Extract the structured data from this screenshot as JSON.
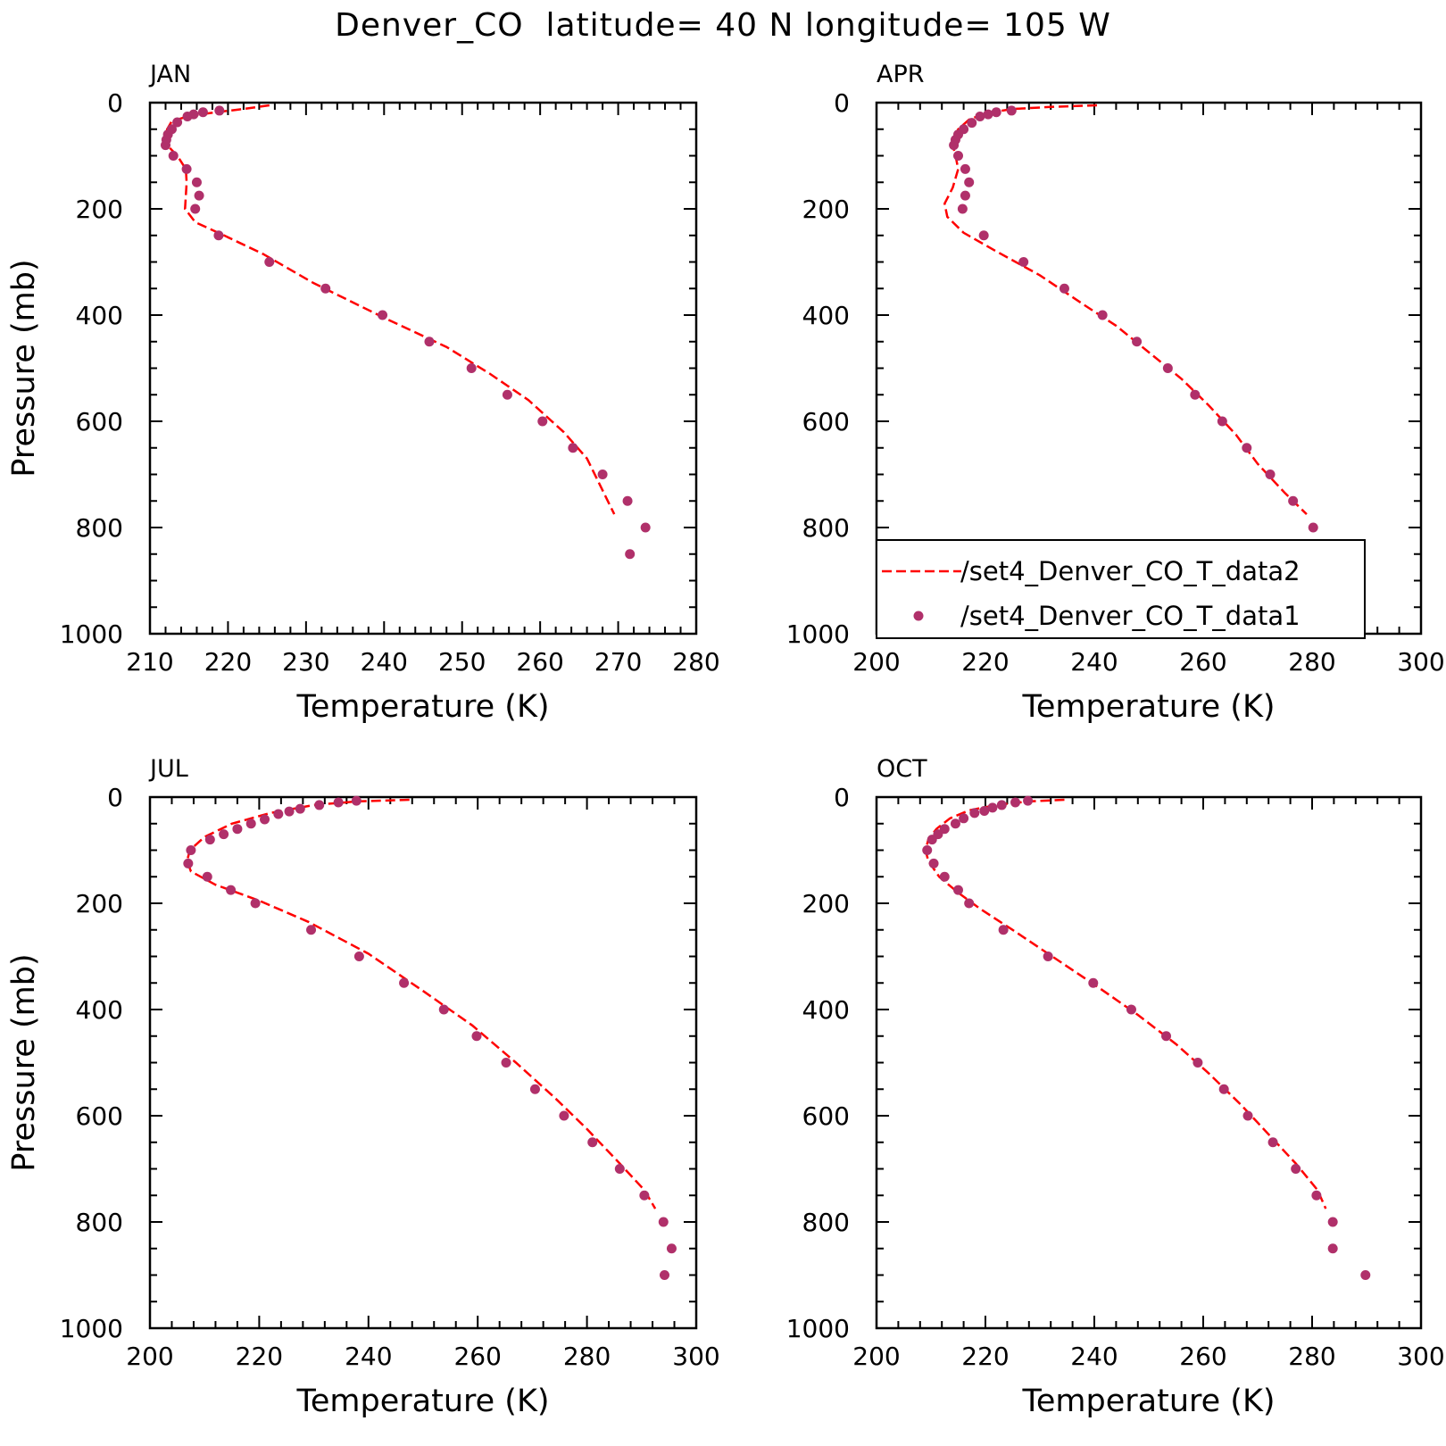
{
  "title": "Denver_CO  latitude= 40 N longitude= 105 W",
  "colors": {
    "model_line": "#ff0000",
    "obs_marker": "#b0306a",
    "axes": "#000000"
  },
  "legend": {
    "placement": "inside APR panel, lower-left",
    "entries": [
      {
        "label": "/set4_Denver_CO_T_data2",
        "style": "dashed-line",
        "series": "model"
      },
      {
        "label": "/set4_Denver_CO_T_data1",
        "style": "marker",
        "series": "obs"
      }
    ]
  },
  "chart_data": [
    {
      "type": "line",
      "panel_label": "JAN",
      "xlabel": "Temperature (K)",
      "ylabel": "Pressure (mb)",
      "xlim": [
        210,
        280
      ],
      "xticks": [
        210,
        220,
        230,
        240,
        250,
        260,
        270,
        280
      ],
      "ylim": [
        0,
        1000
      ],
      "yticks": [
        0,
        200,
        400,
        600,
        800,
        1000
      ],
      "y_inverted": true,
      "grid": false,
      "series": [
        {
          "name": "/set4_Denver_CO_T_data2",
          "style": "dashed-line",
          "points": [
            [
              225.3,
              5
            ],
            [
              222,
              12
            ],
            [
              218.5,
              18
            ],
            [
              215,
              25
            ],
            [
              212.8,
              35
            ],
            [
              212.2,
              50
            ],
            [
              212,
              65
            ],
            [
              212.2,
              80
            ],
            [
              213.5,
              100
            ],
            [
              214.6,
              125
            ],
            [
              214.7,
              150
            ],
            [
              214.5,
              200
            ],
            [
              215.8,
              225
            ],
            [
              219.5,
              250
            ],
            [
              224.5,
              285
            ],
            [
              231,
              340
            ],
            [
              240,
              405
            ],
            [
              248,
              460
            ],
            [
              253.5,
              510
            ],
            [
              258.5,
              560
            ],
            [
              263,
              620
            ],
            [
              266,
              670
            ],
            [
              269.5,
              775
            ]
          ]
        },
        {
          "name": "/set4_Denver_CO_T_data1",
          "style": "marker",
          "points": [
            [
              218.9,
              15
            ],
            [
              216.8,
              18
            ],
            [
              215.6,
              22
            ],
            [
              214.8,
              26
            ],
            [
              213.5,
              37
            ],
            [
              212.8,
              50
            ],
            [
              212.3,
              60
            ],
            [
              212.1,
              70
            ],
            [
              212,
              80
            ],
            [
              213,
              100
            ],
            [
              214.7,
              125
            ],
            [
              216,
              150
            ],
            [
              216.3,
              175
            ],
            [
              215.8,
              200
            ],
            [
              218.8,
              250
            ],
            [
              225.3,
              300
            ],
            [
              232.5,
              350
            ],
            [
              239.8,
              400
            ],
            [
              245.8,
              450
            ],
            [
              251.2,
              500
            ],
            [
              255.8,
              550
            ],
            [
              260.3,
              600
            ],
            [
              264.2,
              650
            ],
            [
              268,
              700
            ],
            [
              271.2,
              750
            ],
            [
              273.5,
              800
            ],
            [
              271.5,
              850
            ]
          ]
        }
      ]
    },
    {
      "type": "line",
      "panel_label": "APR",
      "xlabel": "Temperature (K)",
      "ylabel": "",
      "xlim": [
        200,
        300
      ],
      "xticks": [
        200,
        220,
        240,
        260,
        280,
        300
      ],
      "ylim": [
        0,
        1000
      ],
      "yticks": [
        0,
        200,
        400,
        600,
        800,
        1000
      ],
      "y_inverted": true,
      "grid": false,
      "series": [
        {
          "name": "/set4_Denver_CO_T_data2",
          "style": "dashed-line",
          "points": [
            [
              240.5,
              5
            ],
            [
              232,
              8
            ],
            [
              225,
              12
            ],
            [
              220,
              20
            ],
            [
              217,
              32
            ],
            [
              215,
              50
            ],
            [
              214.3,
              65
            ],
            [
              214,
              80
            ],
            [
              214.5,
              100
            ],
            [
              215,
              125
            ],
            [
              214,
              160
            ],
            [
              212.5,
              190
            ],
            [
              213,
              215
            ],
            [
              216,
              245
            ],
            [
              222,
              280
            ],
            [
              230,
              325
            ],
            [
              238,
              380
            ],
            [
              244,
              420
            ],
            [
              250,
              470
            ],
            [
              256,
              520
            ],
            [
              261,
              570
            ],
            [
              266,
              625
            ],
            [
              270,
              680
            ],
            [
              275,
              735
            ],
            [
              279,
              775
            ]
          ]
        },
        {
          "name": "/set4_Denver_CO_T_data1",
          "style": "marker",
          "points": [
            [
              224.8,
              15
            ],
            [
              222,
              18
            ],
            [
              220.5,
              22
            ],
            [
              219,
              26
            ],
            [
              217.5,
              38
            ],
            [
              216,
              50
            ],
            [
              215,
              60
            ],
            [
              214.5,
              70
            ],
            [
              214.2,
              80
            ],
            [
              215,
              100
            ],
            [
              216.3,
              125
            ],
            [
              217,
              150
            ],
            [
              216.3,
              175
            ],
            [
              215.8,
              200
            ],
            [
              219.7,
              250
            ],
            [
              227,
              300
            ],
            [
              234.5,
              350
            ],
            [
              241.5,
              400
            ],
            [
              247.8,
              450
            ],
            [
              253.5,
              500
            ],
            [
              258.5,
              550
            ],
            [
              263.5,
              600
            ],
            [
              268,
              650
            ],
            [
              272.3,
              700
            ],
            [
              276.5,
              750
            ],
            [
              280.2,
              800
            ],
            [
              281.5,
              850
            ]
          ]
        }
      ]
    },
    {
      "type": "line",
      "panel_label": "JUL",
      "xlabel": "Temperature (K)",
      "ylabel": "Pressure (mb)",
      "xlim": [
        200,
        300
      ],
      "xticks": [
        200,
        220,
        240,
        260,
        280,
        300
      ],
      "ylim": [
        0,
        1000
      ],
      "yticks": [
        0,
        200,
        400,
        600,
        800,
        1000
      ],
      "y_inverted": true,
      "grid": false,
      "series": [
        {
          "name": "/set4_Denver_CO_T_data2",
          "style": "dashed-line",
          "points": [
            [
              247.5,
              5
            ],
            [
              238,
              8
            ],
            [
              230,
              15
            ],
            [
              222,
              30
            ],
            [
              215,
              50
            ],
            [
              210,
              75
            ],
            [
              207.3,
              100
            ],
            [
              206.8,
              120
            ],
            [
              207.5,
              140
            ],
            [
              212,
              165
            ],
            [
              220,
              195
            ],
            [
              229,
              235
            ],
            [
              240,
              295
            ],
            [
              250,
              365
            ],
            [
              259,
              430
            ],
            [
              267,
              500
            ],
            [
              274,
              565
            ],
            [
              280,
              625
            ],
            [
              286,
              690
            ],
            [
              290.5,
              740
            ],
            [
              292.5,
              775
            ]
          ]
        },
        {
          "name": "/set4_Denver_CO_T_data1",
          "style": "marker",
          "points": [
            [
              237.8,
              7
            ],
            [
              234.5,
              10
            ],
            [
              231,
              15
            ],
            [
              227.5,
              22
            ],
            [
              225.5,
              27
            ],
            [
              223.5,
              32
            ],
            [
              221,
              42
            ],
            [
              218.5,
              50
            ],
            [
              216,
              60
            ],
            [
              213.5,
              70
            ],
            [
              211,
              80
            ],
            [
              207.5,
              100
            ],
            [
              207,
              125
            ],
            [
              210.5,
              150
            ],
            [
              214.8,
              175
            ],
            [
              219.3,
              200
            ],
            [
              229.5,
              250
            ],
            [
              238.3,
              300
            ],
            [
              246.5,
              350
            ],
            [
              253.8,
              400
            ],
            [
              259.8,
              450
            ],
            [
              265.2,
              500
            ],
            [
              270.5,
              550
            ],
            [
              275.8,
              600
            ],
            [
              281,
              650
            ],
            [
              286,
              700
            ],
            [
              290.5,
              750
            ],
            [
              294,
              800
            ],
            [
              295.5,
              850
            ],
            [
              294.2,
              900
            ]
          ]
        }
      ]
    },
    {
      "type": "line",
      "panel_label": "OCT",
      "xlabel": "Temperature (K)",
      "ylabel": "",
      "xlim": [
        200,
        300
      ],
      "xticks": [
        200,
        220,
        240,
        260,
        280,
        300
      ],
      "ylim": [
        0,
        1000
      ],
      "yticks": [
        0,
        200,
        400,
        600,
        800,
        1000
      ],
      "y_inverted": true,
      "grid": false,
      "series": [
        {
          "name": "/set4_Denver_CO_T_data2",
          "style": "dashed-line",
          "points": [
            [
              234.5,
              5
            ],
            [
              228,
              8
            ],
            [
              222,
              15
            ],
            [
              217,
              25
            ],
            [
              213.5,
              40
            ],
            [
              211,
              60
            ],
            [
              209.5,
              80
            ],
            [
              209,
              100
            ],
            [
              209.5,
              120
            ],
            [
              211.5,
              150
            ],
            [
              215,
              180
            ],
            [
              219,
              210
            ],
            [
              225,
              250
            ],
            [
              233,
              305
            ],
            [
              241,
              360
            ],
            [
              248,
              410
            ],
            [
              255,
              465
            ],
            [
              261,
              520
            ],
            [
              267,
              580
            ],
            [
              272,
              635
            ],
            [
              277,
              690
            ],
            [
              281,
              740
            ],
            [
              282.5,
              775
            ]
          ]
        },
        {
          "name": "/set4_Denver_CO_T_data1",
          "style": "marker",
          "points": [
            [
              227.8,
              7
            ],
            [
              225.5,
              10
            ],
            [
              223,
              15
            ],
            [
              221.3,
              20
            ],
            [
              219.8,
              26
            ],
            [
              218,
              30
            ],
            [
              216,
              40
            ],
            [
              214.5,
              50
            ],
            [
              212.5,
              60
            ],
            [
              211.3,
              70
            ],
            [
              210.2,
              80
            ],
            [
              209.3,
              100
            ],
            [
              210.5,
              125
            ],
            [
              212.5,
              150
            ],
            [
              215,
              175
            ],
            [
              217,
              200
            ],
            [
              223.3,
              250
            ],
            [
              231.5,
              300
            ],
            [
              239.8,
              350
            ],
            [
              246.8,
              400
            ],
            [
              253.2,
              450
            ],
            [
              259,
              500
            ],
            [
              263.8,
              550
            ],
            [
              268.2,
              600
            ],
            [
              272.8,
              650
            ],
            [
              277,
              700
            ],
            [
              280.8,
              750
            ],
            [
              283.8,
              800
            ],
            [
              283.8,
              850
            ],
            [
              289.8,
              900
            ]
          ]
        }
      ]
    }
  ]
}
